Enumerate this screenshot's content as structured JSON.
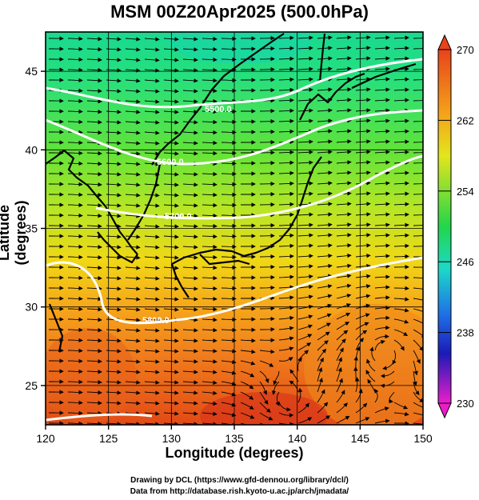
{
  "title": "MSM 00Z20Apr2025 (500.0hPa)",
  "axes": {
    "xlabel": "Longitude (degrees)",
    "ylabel": "Latitude  (degrees)",
    "x_ticks": [
      "120",
      "125",
      "130",
      "135",
      "140",
      "145",
      "150"
    ],
    "y_ticks": [
      "25",
      "30",
      "35",
      "40",
      "45"
    ]
  },
  "colorbar": {
    "ticks": [
      "270",
      "262",
      "254",
      "246",
      "238",
      "230"
    ],
    "min": 230,
    "max": 270
  },
  "contours": [
    {
      "label": "5500.0"
    },
    {
      "label": "5600.0"
    },
    {
      "label": "5700.0"
    },
    {
      "label": "5800.0"
    }
  ],
  "credits": {
    "line1": "Drawing by DCL (https://www.gfd-dennou.org/library/dcl/)",
    "line2": "Data from http://database.rish.kyoto-u.ac.jp/arch/jmadata/"
  },
  "chart_data": {
    "type": "heatmap",
    "title": "MSM 00Z20Apr2025 (500.0hPa)",
    "xlabel": "Longitude (degrees)",
    "ylabel": "Latitude  (degrees)",
    "xlim": [
      120,
      150
    ],
    "ylim": [
      22.5,
      47.5
    ],
    "colorbar_range": [
      230,
      270
    ],
    "colorbar_ticks": [
      230,
      238,
      246,
      254,
      262,
      270
    ],
    "contour_levels": [
      5500,
      5600,
      5700,
      5800
    ],
    "grid": true
  }
}
